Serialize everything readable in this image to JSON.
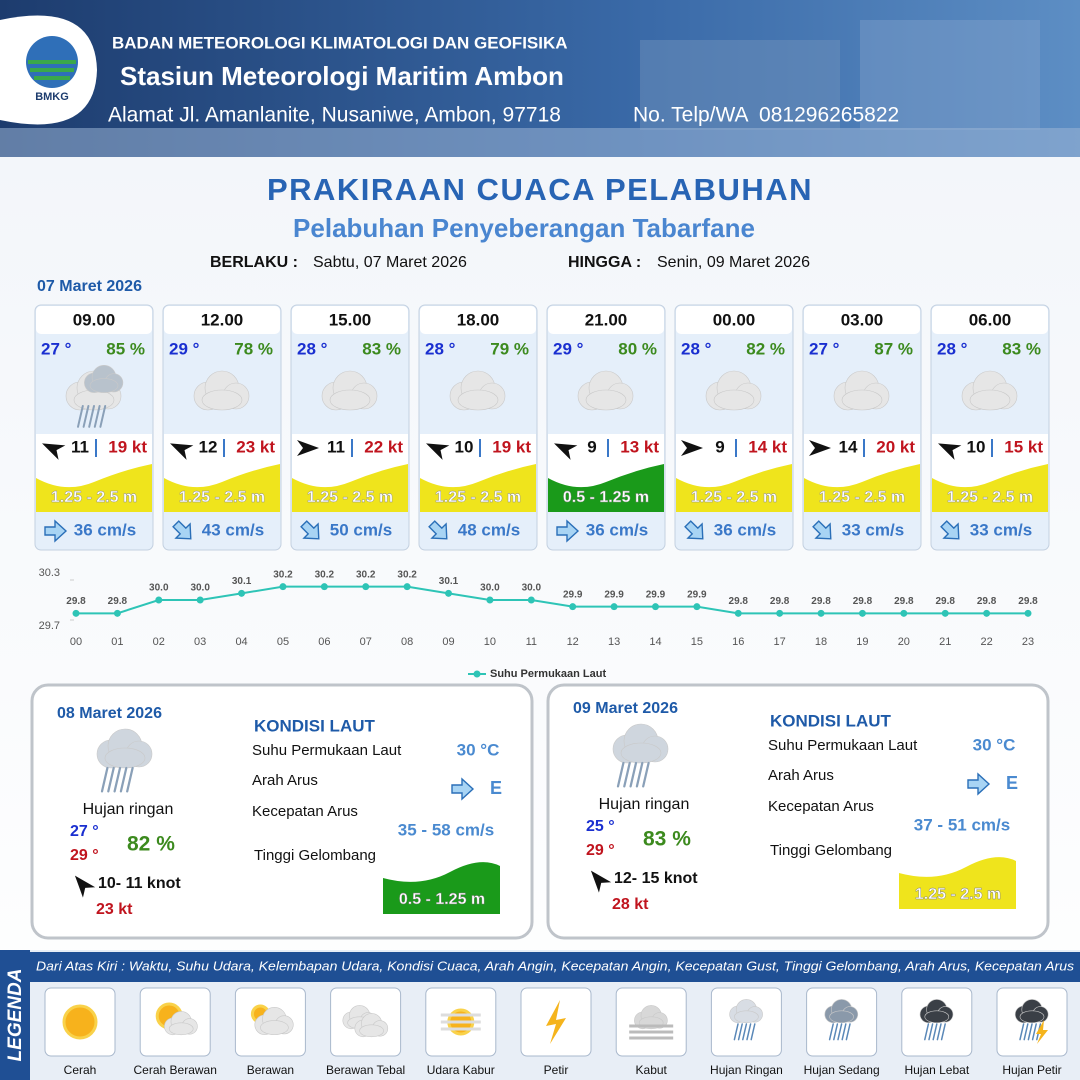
{
  "header": {
    "logo_text": "BMKG",
    "agency": "BADAN METEOROLOGI KLIMATOLOGI DAN GEOFISIKA",
    "station": "Stasiun Meteorologi Maritim Ambon",
    "address": "Alamat Jl. Amanlanite, Nusaniwe, Ambon, 97718",
    "phone": "No. Telp/WA  081296265822"
  },
  "title": "PRAKIRAAN CUACA PELABUHAN",
  "subtitle": "Pelabuhan Penyeberangan Tabarfane",
  "validity": {
    "from_label": "BERLAKU :",
    "from": "Sabtu, 07 Maret 2026",
    "to_label": "HINGGA :",
    "to": "Senin, 09 Maret 2026"
  },
  "today": {
    "date": "07 Maret 2026",
    "forecasts": [
      {
        "time": "09.00",
        "temperature": "27 °",
        "humidity": "85 %",
        "wind_speed": "11",
        "gust": "19 kt",
        "wave_height": "1.25 - 2.5 m",
        "wave_color": "#efe41c",
        "current_speed": "36 cm/s"
      },
      {
        "time": "12.00",
        "temperature": "29 °",
        "humidity": "78 %",
        "wind_speed": "12",
        "gust": "23 kt",
        "wave_height": "1.25 - 2.5 m",
        "wave_color": "#efe41c",
        "current_speed": "43 cm/s"
      },
      {
        "time": "15.00",
        "temperature": "28 °",
        "humidity": "83 %",
        "wind_speed": "11",
        "gust": "22 kt",
        "wave_height": "1.25 - 2.5 m",
        "wave_color": "#efe41c",
        "current_speed": "50 cm/s"
      },
      {
        "time": "18.00",
        "temperature": "28 °",
        "humidity": "79 %",
        "wind_speed": "10",
        "gust": "19 kt",
        "wave_height": "1.25 - 2.5 m",
        "wave_color": "#efe41c",
        "current_speed": "48 cm/s"
      },
      {
        "time": "21.00",
        "temperature": "29 °",
        "humidity": "80 %",
        "wind_speed": "9",
        "gust": "13 kt",
        "wave_height": "0.5 - 1.25 m",
        "wave_color": "#1a9a1a",
        "current_speed": "36 cm/s"
      },
      {
        "time": "00.00",
        "temperature": "28 °",
        "humidity": "82 %",
        "wind_speed": "9",
        "gust": "14 kt",
        "wave_height": "1.25 - 2.5 m",
        "wave_color": "#efe41c",
        "current_speed": "36 cm/s"
      },
      {
        "time": "03.00",
        "temperature": "27 °",
        "humidity": "87 %",
        "wind_speed": "14",
        "gust": "20 kt",
        "wave_height": "1.25 - 2.5 m",
        "wave_color": "#efe41c",
        "current_speed": "33 cm/s"
      },
      {
        "time": "06.00",
        "temperature": "28 °",
        "humidity": "83 %",
        "wind_speed": "10",
        "gust": "15 kt",
        "wave_height": "1.25 - 2.5 m",
        "wave_color": "#efe41c",
        "current_speed": "33 cm/s"
      }
    ]
  },
  "chart_data": {
    "type": "line",
    "categories": [
      "00",
      "01",
      "02",
      "03",
      "04",
      "05",
      "06",
      "07",
      "08",
      "09",
      "10",
      "11",
      "12",
      "13",
      "14",
      "15",
      "16",
      "17",
      "18",
      "19",
      "20",
      "21",
      "22",
      "23"
    ],
    "series": [
      {
        "name": "Suhu Permukaan Laut",
        "color": "#2ec4b6",
        "values": [
          29.8,
          29.8,
          30.0,
          30.0,
          30.1,
          30.2,
          30.2,
          30.2,
          30.2,
          30.1,
          30.0,
          30.0,
          29.9,
          29.9,
          29.9,
          29.9,
          29.8,
          29.8,
          29.8,
          29.8,
          29.8,
          29.8,
          29.8,
          29.8
        ],
        "value_labels": [
          "29.8",
          "29.8",
          "30.0",
          "30.0",
          "30.1",
          "30.2",
          "30.2",
          "30.2",
          "30.2",
          "30.1",
          "30.0",
          "30.0",
          "29.9",
          "29.9",
          "29.9",
          "29.9",
          "29.8",
          "29.8",
          "29.8",
          "29.8",
          "29.8",
          "29.8",
          "29.8",
          "29.8"
        ]
      }
    ],
    "ylim": [
      29.7,
      30.3
    ],
    "yticks": [
      29.7,
      30.3
    ]
  },
  "days": [
    {
      "date": "08 Maret 2026",
      "weather": "Hujan ringan",
      "temp_min": "27 °",
      "temp_max": "29 °",
      "humidity": "82 %",
      "wind": "10- 11 knot",
      "gust": "23 kt",
      "section_title": "KONDISI LAUT",
      "sst_label": "Suhu Permukaan Laut",
      "sst": "30 °C",
      "current_dir_label": "Arah Arus",
      "current_dir": "E",
      "current_speed_label": "Kecepatan Arus",
      "current_speed": "35 - 58 cm/s",
      "wave_label": "Tinggi Gelombang",
      "wave": "0.5 - 1.25 m",
      "wave_color": "#1a9a1a"
    },
    {
      "date": "09 Maret 2026",
      "weather": "Hujan ringan",
      "temp_min": "25 °",
      "temp_max": "29 °",
      "humidity": "83 %",
      "wind": "12- 15 knot",
      "gust": "28 kt",
      "section_title": "KONDISI LAUT",
      "sst_label": "Suhu Permukaan Laut",
      "sst": "30 °C",
      "current_dir_label": "Arah Arus",
      "current_dir": "E",
      "current_speed_label": "Kecepatan Arus",
      "current_speed": "37 - 51 cm/s",
      "wave_label": "Tinggi Gelombang",
      "wave": "1.25 - 2.5 m",
      "wave_color": "#efe41c"
    }
  ],
  "legend": {
    "title": "LEGENDA",
    "description": "Dari Atas Kiri : Waktu, Suhu Udara, Kelembapan Udara, Kondisi Cuaca, Arah Angin, Kecepatan Angin, Kecepatan Gust, Tinggi Gelombang, Arah Arus, Kecepatan Arus",
    "items": [
      "Cerah",
      "Cerah Berawan",
      "Berawan",
      "Berawan Tebal",
      "Udara Kabur",
      "Petir",
      "Kabut",
      "Hujan Ringan",
      "Hujan Sedang",
      "Hujan Lebat",
      "Hujan Petir"
    ]
  }
}
